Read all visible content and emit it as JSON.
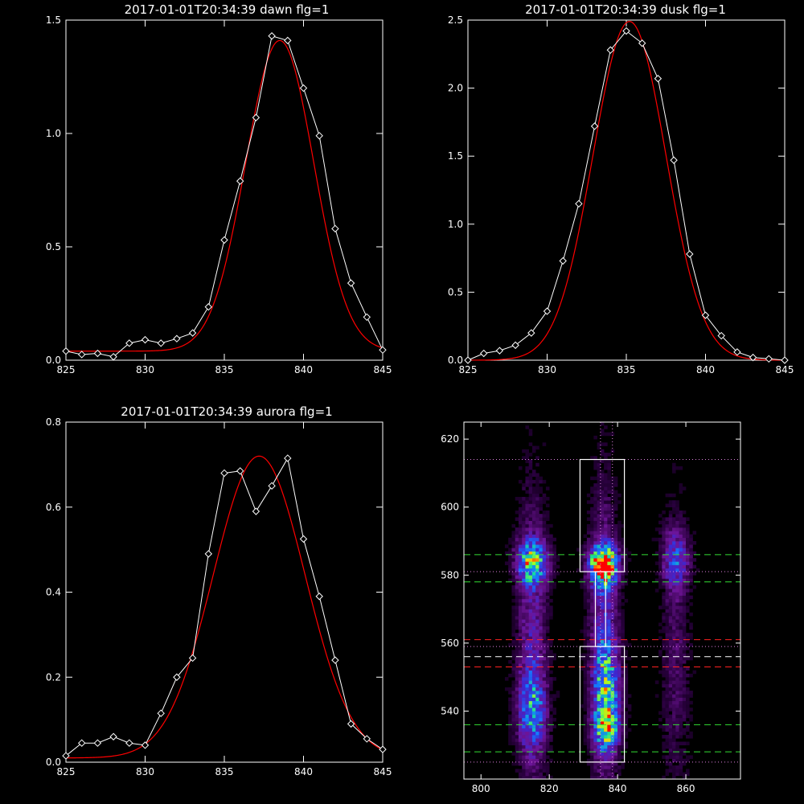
{
  "colors": {
    "background": "#000000",
    "axes": "#ffffff",
    "data_line": "#ffffff",
    "fit_line": "#ff0000"
  },
  "chart_data": [
    {
      "type": "line",
      "title": "2017-01-01T20:34:39 dawn flg=1",
      "xlim": [
        825,
        845
      ],
      "ylim": [
        0,
        1.5
      ],
      "xticks": [
        "825",
        "830",
        "835",
        "840",
        "845"
      ],
      "yticks": [
        "0.0",
        "0.5",
        "1.0",
        "1.5"
      ],
      "data": {
        "x": [
          825,
          826,
          827,
          828,
          829,
          830,
          831,
          832,
          833,
          834,
          835,
          836,
          837,
          838,
          839,
          840,
          841,
          842,
          843,
          844,
          845
        ],
        "y": [
          0.04,
          0.025,
          0.03,
          0.015,
          0.075,
          0.09,
          0.075,
          0.095,
          0.12,
          0.235,
          0.53,
          0.79,
          1.07,
          1.43,
          1.41,
          1.2,
          0.99,
          0.58,
          0.34,
          0.19,
          0.045
        ]
      },
      "fit": {
        "base": 0.04,
        "amplitude": 1.37,
        "center": 838.5,
        "sigma": 2.15
      }
    },
    {
      "type": "line",
      "title": "2017-01-01T20:34:39 dusk flg=1",
      "xlim": [
        825,
        845
      ],
      "ylim": [
        0,
        2.5
      ],
      "xticks": [
        "825",
        "830",
        "835",
        "840",
        "845"
      ],
      "yticks": [
        "0.0",
        "0.5",
        "1.0",
        "1.5",
        "2.0",
        "2.5"
      ],
      "data": {
        "x": [
          825,
          826,
          827,
          828,
          829,
          830,
          831,
          832,
          833,
          834,
          835,
          836,
          837,
          838,
          839,
          840,
          841,
          842,
          843,
          844,
          845
        ],
        "y": [
          0.0,
          0.05,
          0.07,
          0.11,
          0.2,
          0.36,
          0.73,
          1.15,
          1.72,
          2.28,
          2.42,
          2.33,
          2.07,
          1.47,
          0.78,
          0.33,
          0.18,
          0.06,
          0.02,
          0.01,
          0.0
        ]
      },
      "fit": {
        "base": 0.0,
        "amplitude": 2.49,
        "center": 835.2,
        "sigma": 2.3
      }
    },
    {
      "type": "line",
      "title": "2017-01-01T20:34:39 aurora flg=1",
      "xlim": [
        825,
        845
      ],
      "ylim": [
        0,
        0.8
      ],
      "xticks": [
        "825",
        "830",
        "835",
        "840",
        "845"
      ],
      "yticks": [
        "0.0",
        "0.2",
        "0.4",
        "0.6",
        "0.8"
      ],
      "data": {
        "x": [
          825,
          826,
          827,
          828,
          829,
          830,
          831,
          832,
          833,
          834,
          835,
          836,
          837,
          838,
          839,
          840,
          841,
          842,
          843,
          844,
          845
        ],
        "y": [
          0.015,
          0.045,
          0.045,
          0.06,
          0.045,
          0.04,
          0.115,
          0.2,
          0.245,
          0.49,
          0.68,
          0.685,
          0.59,
          0.65,
          0.715,
          0.525,
          0.39,
          0.24,
          0.09,
          0.055,
          0.03
        ]
      },
      "fit": {
        "base": 0.01,
        "amplitude": 0.71,
        "center": 837.2,
        "sigma": 2.9
      }
    },
    {
      "type": "heatmap",
      "xlim": [
        795,
        876
      ],
      "ylim": [
        520,
        625
      ],
      "xticks": [
        "800",
        "820",
        "840",
        "860"
      ],
      "yticks": [
        "540",
        "560",
        "580",
        "600",
        "620"
      ],
      "blobs": [
        {
          "x": 815,
          "y": 584,
          "sx": 3.2,
          "sy": 4.5,
          "amp": 0.6
        },
        {
          "x": 815,
          "y": 560,
          "sx": 3.0,
          "sy": 30,
          "amp": 0.28
        },
        {
          "x": 815,
          "y": 540,
          "sx": 3.0,
          "sy": 8,
          "amp": 0.35
        },
        {
          "x": 836,
          "y": 583,
          "sx": 2.8,
          "sy": 4.0,
          "amp": 1.0
        },
        {
          "x": 836,
          "y": 560,
          "sx": 2.8,
          "sy": 30,
          "amp": 0.33
        },
        {
          "x": 837,
          "y": 546,
          "sx": 2.8,
          "sy": 10,
          "amp": 0.4
        },
        {
          "x": 837,
          "y": 535,
          "sx": 2.5,
          "sy": 4,
          "amp": 0.45
        },
        {
          "x": 857,
          "y": 585,
          "sx": 2.8,
          "sy": 6,
          "amp": 0.35
        },
        {
          "x": 857,
          "y": 555,
          "sx": 2.8,
          "sy": 30,
          "amp": 0.15
        }
      ],
      "box_upper": {
        "x": [
          829,
          842
        ],
        "y": [
          581,
          614
        ]
      },
      "box_lower": {
        "x": [
          829,
          842
        ],
        "y": [
          525,
          559
        ]
      },
      "box_neck": {
        "x": [
          833.5,
          836.5
        ],
        "y": [
          559,
          581
        ]
      },
      "vlines_dotted": [
        835,
        838.5
      ],
      "hlines_dotted": [
        614,
        581,
        559,
        525
      ],
      "hlines_dashed_white": [
        556
      ],
      "hlines_dashed_green": [
        586,
        578,
        536,
        528
      ],
      "hlines_dashed_red": [
        561,
        553
      ]
    }
  ]
}
